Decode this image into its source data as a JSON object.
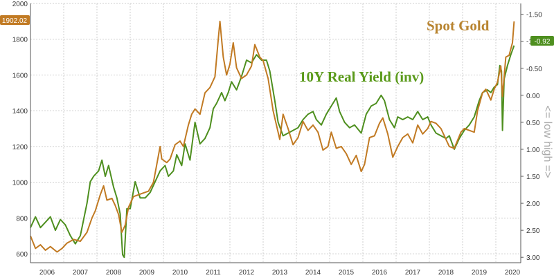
{
  "chart_data": {
    "type": "line",
    "title": "",
    "xlabel": "",
    "ylabel": "",
    "right_axis_label": "<= low high =>",
    "colors": {
      "gold": "#c17a23",
      "yield": "#4e8f1f",
      "grid": "#cfcfcf"
    },
    "x_ticks": [
      "2006",
      "2007",
      "2008",
      "2009",
      "2010",
      "2011",
      "2012",
      "2013",
      "2014",
      "2015",
      "2016",
      "2017",
      "2018",
      "2019",
      "2020"
    ],
    "y_left_ticks": [
      "600",
      "800",
      "1000",
      "1200",
      "1400",
      "1600",
      "1800",
      "2000"
    ],
    "y_left_range": [
      550,
      2000
    ],
    "y_right_ticks": [
      "-1.50",
      "-1.00",
      "-0.50",
      "0.00",
      "0.50",
      "1.00",
      "1.50",
      "2.00",
      "2.50",
      "3.00"
    ],
    "y_right_range": [
      3.1,
      -1.7
    ],
    "y_right_inverted": true,
    "grid": true,
    "annotations": {
      "gold_last": "1902.02",
      "yield_last": "-0.92"
    },
    "series": [
      {
        "name": "Spot Gold",
        "axis": "left",
        "points": [
          [
            2006.0,
            700
          ],
          [
            2006.15,
            630
          ],
          [
            2006.3,
            650
          ],
          [
            2006.45,
            620
          ],
          [
            2006.6,
            640
          ],
          [
            2006.8,
            610
          ],
          [
            2006.95,
            630
          ],
          [
            2007.1,
            660
          ],
          [
            2007.3,
            680
          ],
          [
            2007.5,
            670
          ],
          [
            2007.7,
            720
          ],
          [
            2007.85,
            800
          ],
          [
            2007.95,
            840
          ],
          [
            2008.1,
            930
          ],
          [
            2008.2,
            980
          ],
          [
            2008.3,
            900
          ],
          [
            2008.45,
            910
          ],
          [
            2008.55,
            870
          ],
          [
            2008.65,
            820
          ],
          [
            2008.75,
            720
          ],
          [
            2008.85,
            760
          ],
          [
            2008.95,
            860
          ],
          [
            2009.1,
            920
          ],
          [
            2009.25,
            930
          ],
          [
            2009.4,
            940
          ],
          [
            2009.55,
            950
          ],
          [
            2009.7,
            1000
          ],
          [
            2009.8,
            1100
          ],
          [
            2009.9,
            1200
          ],
          [
            2009.95,
            1130
          ],
          [
            2010.1,
            1110
          ],
          [
            2010.2,
            1130
          ],
          [
            2010.35,
            1210
          ],
          [
            2010.5,
            1230
          ],
          [
            2010.6,
            1200
          ],
          [
            2010.75,
            1320
          ],
          [
            2010.85,
            1380
          ],
          [
            2010.95,
            1410
          ],
          [
            2011.1,
            1380
          ],
          [
            2011.25,
            1500
          ],
          [
            2011.4,
            1530
          ],
          [
            2011.55,
            1590
          ],
          [
            2011.65,
            1800
          ],
          [
            2011.7,
            1900
          ],
          [
            2011.8,
            1700
          ],
          [
            2011.9,
            1600
          ],
          [
            2012.0,
            1660
          ],
          [
            2012.1,
            1780
          ],
          [
            2012.2,
            1640
          ],
          [
            2012.35,
            1580
          ],
          [
            2012.5,
            1600
          ],
          [
            2012.65,
            1650
          ],
          [
            2012.75,
            1770
          ],
          [
            2012.9,
            1700
          ],
          [
            2013.0,
            1680
          ],
          [
            2013.15,
            1580
          ],
          [
            2013.3,
            1400
          ],
          [
            2013.5,
            1240
          ],
          [
            2013.6,
            1380
          ],
          [
            2013.75,
            1300
          ],
          [
            2013.9,
            1210
          ],
          [
            2014.05,
            1250
          ],
          [
            2014.2,
            1340
          ],
          [
            2014.35,
            1290
          ],
          [
            2014.5,
            1320
          ],
          [
            2014.65,
            1280
          ],
          [
            2014.8,
            1180
          ],
          [
            2014.95,
            1200
          ],
          [
            2015.05,
            1280
          ],
          [
            2015.2,
            1190
          ],
          [
            2015.35,
            1200
          ],
          [
            2015.5,
            1160
          ],
          [
            2015.65,
            1100
          ],
          [
            2015.8,
            1150
          ],
          [
            2015.95,
            1060
          ],
          [
            2016.05,
            1100
          ],
          [
            2016.2,
            1250
          ],
          [
            2016.35,
            1260
          ],
          [
            2016.5,
            1330
          ],
          [
            2016.6,
            1360
          ],
          [
            2016.75,
            1270
          ],
          [
            2016.9,
            1140
          ],
          [
            2017.05,
            1200
          ],
          [
            2017.2,
            1250
          ],
          [
            2017.35,
            1270
          ],
          [
            2017.5,
            1220
          ],
          [
            2017.65,
            1320
          ],
          [
            2017.8,
            1270
          ],
          [
            2017.95,
            1300
          ],
          [
            2018.05,
            1340
          ],
          [
            2018.2,
            1330
          ],
          [
            2018.35,
            1300
          ],
          [
            2018.5,
            1240
          ],
          [
            2018.6,
            1200
          ],
          [
            2018.75,
            1190
          ],
          [
            2018.95,
            1280
          ],
          [
            2019.05,
            1300
          ],
          [
            2019.2,
            1290
          ],
          [
            2019.35,
            1280
          ],
          [
            2019.45,
            1400
          ],
          [
            2019.6,
            1500
          ],
          [
            2019.7,
            1520
          ],
          [
            2019.85,
            1460
          ],
          [
            2019.95,
            1520
          ],
          [
            2020.05,
            1560
          ],
          [
            2020.15,
            1650
          ],
          [
            2020.2,
            1480
          ],
          [
            2020.3,
            1700
          ],
          [
            2020.4,
            1710
          ],
          [
            2020.5,
            1780
          ],
          [
            2020.55,
            1900
          ]
        ]
      },
      {
        "name": "10Y Real Yield (inv)",
        "axis": "right",
        "points": [
          [
            2006.0,
            2.45
          ],
          [
            2006.15,
            2.25
          ],
          [
            2006.3,
            2.45
          ],
          [
            2006.45,
            2.35
          ],
          [
            2006.6,
            2.25
          ],
          [
            2006.75,
            2.5
          ],
          [
            2006.9,
            2.3
          ],
          [
            2007.05,
            2.4
          ],
          [
            2007.2,
            2.6
          ],
          [
            2007.35,
            2.75
          ],
          [
            2007.5,
            2.6
          ],
          [
            2007.6,
            2.3
          ],
          [
            2007.7,
            2.0
          ],
          [
            2007.8,
            1.6
          ],
          [
            2007.9,
            1.5
          ],
          [
            2008.05,
            1.4
          ],
          [
            2008.15,
            1.2
          ],
          [
            2008.25,
            1.5
          ],
          [
            2008.35,
            1.3
          ],
          [
            2008.5,
            1.7
          ],
          [
            2008.6,
            1.9
          ],
          [
            2008.7,
            2.2
          ],
          [
            2008.77,
            2.95
          ],
          [
            2008.82,
            3.0
          ],
          [
            2008.9,
            2.1
          ],
          [
            2009.0,
            2.1
          ],
          [
            2009.15,
            1.6
          ],
          [
            2009.3,
            1.9
          ],
          [
            2009.45,
            1.9
          ],
          [
            2009.6,
            1.8
          ],
          [
            2009.75,
            1.6
          ],
          [
            2009.9,
            1.4
          ],
          [
            2010.05,
            1.3
          ],
          [
            2010.15,
            1.5
          ],
          [
            2010.3,
            1.4
          ],
          [
            2010.4,
            1.1
          ],
          [
            2010.55,
            1.3
          ],
          [
            2010.65,
            0.9
          ],
          [
            2010.8,
            1.2
          ],
          [
            2010.95,
            0.5
          ],
          [
            2011.1,
            0.9
          ],
          [
            2011.25,
            0.8
          ],
          [
            2011.4,
            0.6
          ],
          [
            2011.5,
            0.25
          ],
          [
            2011.6,
            0.15
          ],
          [
            2011.75,
            -0.05
          ],
          [
            2011.85,
            0.1
          ],
          [
            2011.95,
            -0.05
          ],
          [
            2012.05,
            -0.25
          ],
          [
            2012.2,
            -0.1
          ],
          [
            2012.35,
            -0.35
          ],
          [
            2012.5,
            -0.65
          ],
          [
            2012.65,
            -0.6
          ],
          [
            2012.8,
            -0.75
          ],
          [
            2012.95,
            -0.65
          ],
          [
            2013.1,
            -0.65
          ],
          [
            2013.2,
            -0.45
          ],
          [
            2013.35,
            0.1
          ],
          [
            2013.45,
            0.5
          ],
          [
            2013.6,
            0.75
          ],
          [
            2013.75,
            0.7
          ],
          [
            2013.9,
            0.65
          ],
          [
            2014.05,
            0.6
          ],
          [
            2014.2,
            0.45
          ],
          [
            2014.35,
            0.35
          ],
          [
            2014.5,
            0.3
          ],
          [
            2014.6,
            0.45
          ],
          [
            2014.75,
            0.55
          ],
          [
            2014.9,
            0.35
          ],
          [
            2015.05,
            0.2
          ],
          [
            2015.2,
            0.05
          ],
          [
            2015.3,
            0.3
          ],
          [
            2015.45,
            0.5
          ],
          [
            2015.6,
            0.6
          ],
          [
            2015.75,
            0.55
          ],
          [
            2015.95,
            0.7
          ],
          [
            2016.1,
            0.35
          ],
          [
            2016.25,
            0.2
          ],
          [
            2016.4,
            0.15
          ],
          [
            2016.55,
            0.0
          ],
          [
            2016.65,
            0.1
          ],
          [
            2016.8,
            0.45
          ],
          [
            2016.95,
            0.6
          ],
          [
            2017.05,
            0.4
          ],
          [
            2017.2,
            0.45
          ],
          [
            2017.35,
            0.4
          ],
          [
            2017.5,
            0.45
          ],
          [
            2017.65,
            0.3
          ],
          [
            2017.8,
            0.45
          ],
          [
            2017.95,
            0.4
          ],
          [
            2018.05,
            0.55
          ],
          [
            2018.2,
            0.7
          ],
          [
            2018.35,
            0.75
          ],
          [
            2018.5,
            0.8
          ],
          [
            2018.6,
            0.75
          ],
          [
            2018.75,
            1.0
          ],
          [
            2018.9,
            0.8
          ],
          [
            2019.05,
            0.65
          ],
          [
            2019.2,
            0.55
          ],
          [
            2019.35,
            0.4
          ],
          [
            2019.5,
            0.1
          ],
          [
            2019.6,
            -0.05
          ],
          [
            2019.75,
            -0.1
          ],
          [
            2019.85,
            -0.05
          ],
          [
            2019.95,
            -0.15
          ],
          [
            2020.05,
            -0.2
          ],
          [
            2020.12,
            -0.55
          ],
          [
            2020.17,
            -0.45
          ],
          [
            2020.2,
            0.65
          ],
          [
            2020.25,
            -0.3
          ],
          [
            2020.35,
            -0.55
          ],
          [
            2020.45,
            -0.75
          ],
          [
            2020.55,
            -0.92
          ]
        ]
      }
    ]
  }
}
